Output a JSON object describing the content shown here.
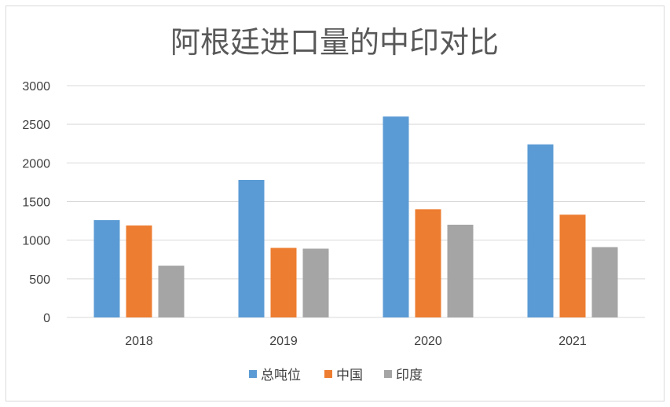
{
  "chart_data": {
    "type": "bar",
    "title": "阿根廷进口量的中印对比",
    "categories": [
      "2018",
      "2019",
      "2020",
      "2021"
    ],
    "series": [
      {
        "name": "总吨位",
        "color": "#5b9bd5",
        "values": [
          1260,
          1780,
          2600,
          2240
        ]
      },
      {
        "name": "中国",
        "color": "#ed7d31",
        "values": [
          1190,
          900,
          1400,
          1330
        ]
      },
      {
        "name": "印度",
        "color": "#a5a5a5",
        "values": [
          670,
          890,
          1200,
          910
        ]
      }
    ],
    "ylim": [
      0,
      3000
    ],
    "yticks": [
      0,
      500,
      1000,
      1500,
      2000,
      2500,
      3000
    ],
    "grid": true,
    "legend_position": "bottom"
  }
}
